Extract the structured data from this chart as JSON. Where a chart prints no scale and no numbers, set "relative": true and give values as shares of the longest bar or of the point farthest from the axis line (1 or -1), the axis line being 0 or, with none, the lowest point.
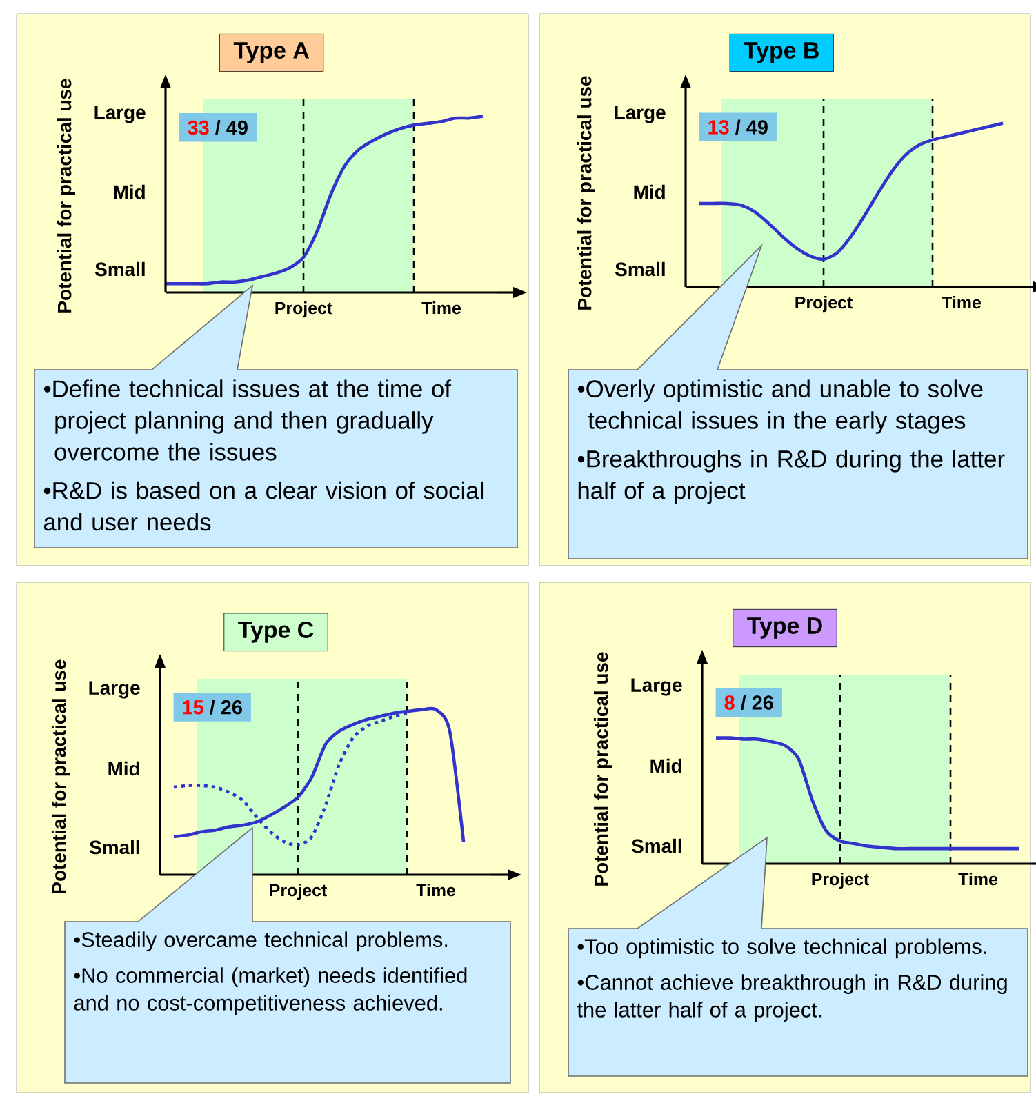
{
  "chart_data": [
    {
      "type": "line",
      "relative": true,
      "title": "Type A",
      "ylabel": "Potential for practical use",
      "marker": "none",
      "categories": [
        null,
        null,
        null,
        null,
        null,
        null,
        null,
        null,
        null,
        null,
        "Project",
        null,
        null,
        null,
        null,
        null,
        null,
        null,
        null,
        null,
        "Time",
        null,
        null,
        null,
        null
      ],
      "series": [
        {
          "color": "#3333cc",
          "line_style": "solid",
          "values": [
            0.05,
            0.05,
            0.05,
            0.05,
            0.06,
            0.06,
            0.07,
            0.09,
            0.11,
            0.14,
            0.2,
            0.35,
            0.56,
            0.72,
            0.81,
            0.86,
            0.9,
            0.93,
            0.95,
            0.96,
            0.97,
            0.99,
            0.99,
            1,
            null
          ]
        }
      ],
      "annotations": [
        "Small",
        "Mid",
        "Large",
        "33",
        "/ 49",
        "•Define technical issues at the time of project planning and then gradually overcome the issues",
        "•R&D is based on a clear vision of social and user needs"
      ]
    },
    {
      "type": "line",
      "relative": true,
      "title": "Type B",
      "ylabel": "Potential for practical use",
      "marker": "none",
      "categories": [
        null,
        null,
        null,
        null,
        null,
        null,
        null,
        null,
        null,
        null,
        "Project",
        null,
        null,
        null,
        null,
        null,
        null,
        null,
        null,
        null,
        "Time",
        null,
        null,
        null,
        null
      ],
      "series": [
        {
          "color": "#3333cc",
          "line_style": "solid",
          "values": [
            null,
            0.51,
            0.51,
            0.51,
            0.5,
            0.46,
            0.39,
            0.31,
            0.24,
            0.19,
            0.17,
            0.21,
            0.31,
            0.44,
            0.58,
            0.71,
            0.81,
            0.87,
            0.9,
            0.92,
            0.94,
            0.96,
            0.98,
            1,
            null
          ]
        }
      ],
      "annotations": [
        "Small",
        "Mid",
        "Large",
        "13",
        "/ 49",
        "•Overly optimistic and unable to solve technical issues in the early stages",
        "•Breakthroughs in R&D during the latter half of a project"
      ]
    },
    {
      "type": "line",
      "relative": true,
      "title": "Type C",
      "ylabel": "Potential for practical use",
      "marker": "none",
      "categories": [
        null,
        null,
        null,
        null,
        null,
        null,
        null,
        null,
        null,
        null,
        "Project",
        null,
        null,
        null,
        null,
        null,
        null,
        null,
        null,
        null,
        "Time",
        null,
        null,
        null,
        null
      ],
      "series": [
        {
          "color": "#3333cc",
          "line_style": "solid",
          "values": [
            null,
            0.23,
            0.24,
            0.26,
            0.27,
            0.29,
            0.3,
            0.32,
            0.36,
            0.41,
            0.47,
            0.59,
            0.79,
            0.87,
            0.91,
            0.94,
            0.96,
            0.98,
            0.99,
            1,
            1,
            0.87,
            0.2,
            null,
            null
          ]
        },
        {
          "color": "#3333cc",
          "line_style": "dotted",
          "values": [
            null,
            0.53,
            0.54,
            0.54,
            0.53,
            0.5,
            0.45,
            0.35,
            0.26,
            0.2,
            0.18,
            0.23,
            0.42,
            0.67,
            0.83,
            0.9,
            0.93,
            0.96,
            0.98,
            null,
            null,
            null,
            null,
            null,
            null
          ]
        }
      ],
      "annotations": [
        "Small",
        "Mid",
        "Large",
        "15",
        "/ 26",
        "•Steadily overcame technical problems.",
        "•No commercial (market) needs identified and no cost-competitiveness achieved."
      ]
    },
    {
      "type": "line",
      "relative": true,
      "title": "Type D",
      "ylabel": "Potential for practical use",
      "marker": "none",
      "categories": [
        null,
        null,
        null,
        null,
        null,
        null,
        null,
        null,
        null,
        null,
        "Project",
        null,
        null,
        null,
        null,
        null,
        null,
        null,
        null,
        null,
        "Time",
        null,
        null,
        null,
        null
      ],
      "series": [
        {
          "color": "#3333cc",
          "line_style": "solid",
          "values": [
            null,
            1,
            1,
            0.99,
            0.99,
            0.97,
            0.94,
            0.83,
            0.5,
            0.26,
            0.18,
            0.16,
            0.14,
            0.13,
            0.12,
            0.12,
            0.12,
            0.12,
            0.12,
            0.12,
            0.12,
            0.12,
            0.12,
            0.12,
            null
          ]
        }
      ],
      "annotations": [
        "Small",
        "Mid",
        "Large",
        "8",
        "/ 26",
        "•Too optimistic to solve technical problems.",
        "•Cannot achieve breakthrough in R&D during the latter half of a project."
      ]
    }
  ]
}
